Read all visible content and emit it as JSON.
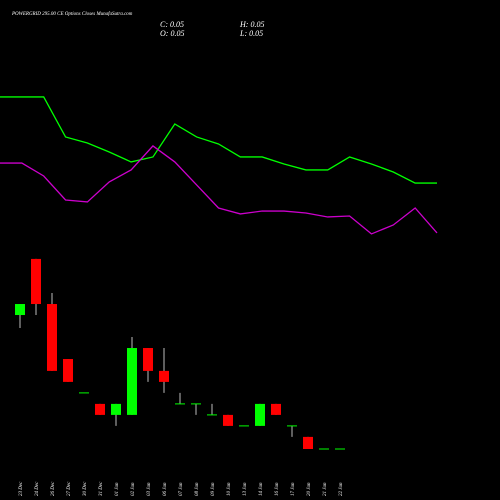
{
  "chart_data": {
    "type": "candlestick",
    "title": "POWERGRID 295.00 CE Options Closes MunafaSutra.com",
    "ohlc_labels": [
      "C: 0.05",
      "H: 0.05",
      "O: 0.05",
      "L: 0.05"
    ],
    "categories": [
      "23 Dec",
      "24 Dec",
      "26 Dec",
      "27 Dec",
      "30 Dec",
      "31 Dec",
      "01 Jan",
      "02 Jan",
      "03 Jan",
      "06 Jan",
      "07 Jan",
      "08 Jan",
      "09 Jan",
      "10 Jan",
      "13 Jan",
      "14 Jan",
      "16 Jan",
      "17 Jan",
      "20 Jan",
      "21 Jan",
      "22 Jan"
    ],
    "open": [
      0.659,
      0.914,
      0.709,
      0.459,
      0.305,
      0.255,
      0.205,
      0.205,
      0.509,
      0.405,
      0.255,
      0.255,
      0.205,
      0.205,
      0.155,
      0.155,
      0.255,
      0.155,
      0.105,
      0.05,
      0.05
    ],
    "high": [
      0.709,
      0.914,
      0.759,
      0.459,
      0.305,
      0.255,
      0.255,
      0.559,
      0.509,
      0.509,
      0.305,
      0.255,
      0.255,
      0.205,
      0.155,
      0.255,
      0.255,
      0.155,
      0.105,
      0.05,
      0.05
    ],
    "low": [
      0.6,
      0.659,
      0.405,
      0.355,
      0.305,
      0.205,
      0.155,
      0.205,
      0.355,
      0.305,
      0.255,
      0.205,
      0.205,
      0.155,
      0.155,
      0.155,
      0.205,
      0.105,
      0.05,
      0.05,
      0.05
    ],
    "close": [
      0.709,
      0.709,
      0.405,
      0.355,
      0.305,
      0.205,
      0.255,
      0.509,
      0.405,
      0.355,
      0.255,
      0.255,
      0.205,
      0.155,
      0.155,
      0.255,
      0.205,
      0.155,
      0.05,
      0.05,
      0.05
    ],
    "up_color": "#00ff00",
    "down_color": "#ff0000",
    "ylim": [
      0,
      1.0
    ],
    "series": [
      {
        "color": "#00ff00",
        "axis": "y2",
        "values": [
          89.4,
          89.4,
          89.4,
          64.4,
          60.6,
          55,
          48.8,
          51.9,
          72.5,
          64.4,
          60,
          51.9,
          51.9,
          47.5,
          43.8,
          43.8,
          51.9,
          47.5,
          42.5,
          35.6,
          35.6
        ]
      },
      {
        "color": "#cc00cc",
        "axis": "y2",
        "values": [
          48.1,
          48.1,
          40,
          25,
          23.8,
          36.3,
          43.8,
          58.8,
          48.8,
          34.4,
          20,
          16.3,
          18.1,
          18.1,
          16.9,
          14.4,
          15,
          3.8,
          9.4,
          20,
          4.4
        ]
      }
    ],
    "y2lim": [
      0,
      100
    ]
  }
}
